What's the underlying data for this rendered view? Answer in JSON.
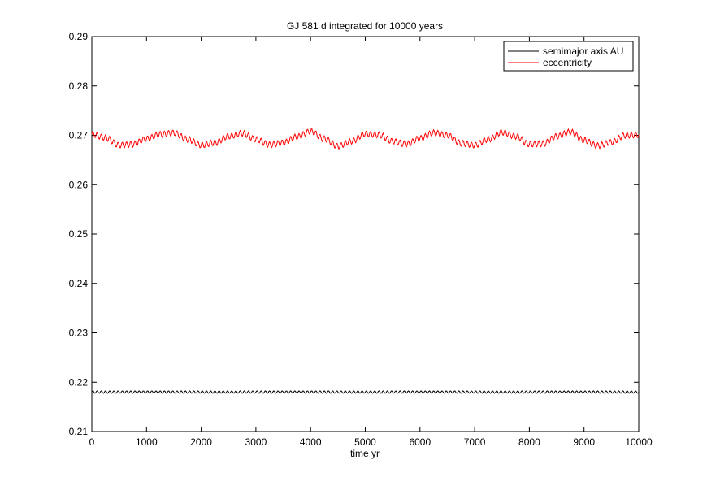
{
  "chart_data": {
    "type": "line",
    "title": "GJ 581 d integrated for 10000 years",
    "xlabel": "time  yr",
    "ylabel": "",
    "xlim": [
      0,
      10000
    ],
    "ylim": [
      0.21,
      0.29
    ],
    "x_ticks": [
      0,
      1000,
      2000,
      3000,
      4000,
      5000,
      6000,
      7000,
      8000,
      9000,
      10000
    ],
    "y_ticks": [
      0.21,
      0.22,
      0.23,
      0.24,
      0.25,
      0.26,
      0.27,
      0.28,
      0.29
    ],
    "x_tick_labels": [
      "0",
      "1000",
      "2000",
      "3000",
      "4000",
      "5000",
      "6000",
      "7000",
      "8000",
      "9000",
      "10000"
    ],
    "y_tick_labels": [
      "0.21",
      "0.22",
      "0.23",
      "0.24",
      "0.25",
      "0.26",
      "0.27",
      "0.28",
      "0.29"
    ],
    "grid": false,
    "legend_position": "top-right",
    "x": [
      0,
      250,
      500,
      750,
      1000,
      1250,
      1500,
      1750,
      2000,
      2250,
      2500,
      2750,
      3000,
      3250,
      3500,
      3750,
      4000,
      4250,
      4500,
      4750,
      5000,
      5250,
      5500,
      5750,
      6000,
      6250,
      6500,
      6750,
      7000,
      7250,
      7500,
      7750,
      8000,
      8250,
      8500,
      8750,
      9000,
      9250,
      9500,
      9750,
      10000
    ],
    "series": [
      {
        "name": "semimajor axis  AU",
        "color": "#000000",
        "values": [
          0.218,
          0.218,
          0.218,
          0.218,
          0.218,
          0.218,
          0.218,
          0.218,
          0.218,
          0.218,
          0.218,
          0.218,
          0.218,
          0.218,
          0.218,
          0.218,
          0.218,
          0.218,
          0.218,
          0.218,
          0.218,
          0.218,
          0.218,
          0.218,
          0.218,
          0.218,
          0.218,
          0.218,
          0.218,
          0.218,
          0.218,
          0.218,
          0.218,
          0.218,
          0.218,
          0.218,
          0.218,
          0.218,
          0.218,
          0.218,
          0.218
        ]
      },
      {
        "name": "eccentricity",
        "color": "#ff0000",
        "values": [
          0.2702,
          0.2695,
          0.268,
          0.2682,
          0.2693,
          0.2702,
          0.2705,
          0.2692,
          0.268,
          0.2685,
          0.2698,
          0.2704,
          0.2692,
          0.2681,
          0.2685,
          0.2697,
          0.2708,
          0.2693,
          0.2678,
          0.2688,
          0.2703,
          0.2701,
          0.2688,
          0.2682,
          0.2694,
          0.2705,
          0.27,
          0.2684,
          0.268,
          0.2692,
          0.2706,
          0.2698,
          0.2682,
          0.2683,
          0.2698,
          0.2707,
          0.269,
          0.2679,
          0.2686,
          0.27,
          0.2701
        ]
      }
    ]
  }
}
